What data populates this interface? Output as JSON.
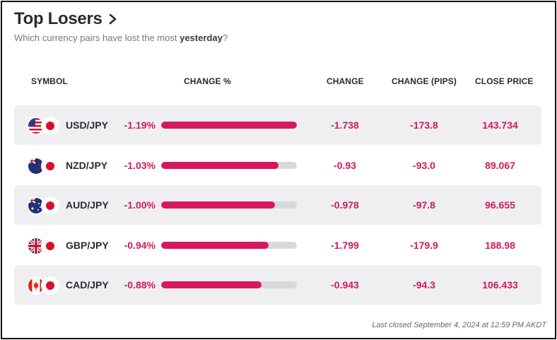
{
  "header": {
    "title": "Top Losers",
    "subtitle_prefix": "Which currency pairs have lost the most ",
    "subtitle_emphasis": "yesterday",
    "subtitle_suffix": "?"
  },
  "columns": {
    "symbol": "SYMBOL",
    "change_pct": "CHANGE %",
    "change": "CHANGE",
    "change_pips": "CHANGE (PIPS)",
    "close_price": "CLOSE PRICE"
  },
  "rows": [
    {
      "symbol": "USD/JPY",
      "base_flag_icon": "us-flag-icon",
      "change_pct": "-1.19%",
      "bar_fraction": 1.0,
      "change": "-1.738",
      "change_pips": "-173.8",
      "close_price": "143.734"
    },
    {
      "symbol": "NZD/JPY",
      "base_flag_icon": "nz-flag-icon",
      "change_pct": "-1.03%",
      "bar_fraction": 0.866,
      "change": "-0.93",
      "change_pips": "-93.0",
      "close_price": "89.067"
    },
    {
      "symbol": "AUD/JPY",
      "base_flag_icon": "au-flag-icon",
      "change_pct": "-1.00%",
      "bar_fraction": 0.84,
      "change": "-0.978",
      "change_pips": "-97.8",
      "close_price": "96.655"
    },
    {
      "symbol": "GBP/JPY",
      "base_flag_icon": "gb-flag-icon",
      "change_pct": "-0.94%",
      "bar_fraction": 0.79,
      "change": "-1.799",
      "change_pips": "-179.9",
      "close_price": "188.98"
    },
    {
      "symbol": "CAD/JPY",
      "base_flag_icon": "ca-flag-icon",
      "change_pct": "-0.88%",
      "bar_fraction": 0.74,
      "change": "-0.943",
      "change_pips": "-94.3",
      "close_price": "106.433"
    }
  ],
  "footer": "Last closed September 4, 2024 at 12:59 PM AKDT",
  "colors": {
    "accent": "#d6195e",
    "value_text": "#d01a5c",
    "bar_track": "#d9d9dc",
    "row_shade": "#efeff1"
  }
}
